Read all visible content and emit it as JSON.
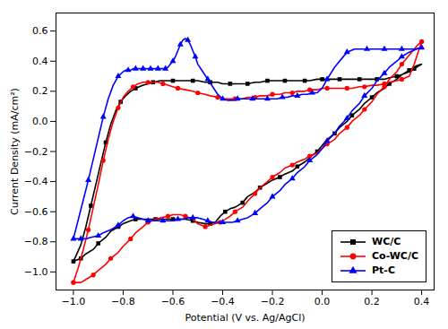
{
  "chart_data": {
    "type": "line",
    "xlabel": "Potential (V vs. Ag/AgCl)",
    "ylabel": "Current Density (mA/cm²)",
    "xlim": [
      -1.07,
      0.45
    ],
    "ylim": [
      -1.12,
      0.72
    ],
    "xticks": [
      {
        "value": -1.0,
        "label": "−1.0"
      },
      {
        "value": -0.8,
        "label": "−0.8"
      },
      {
        "value": -0.6,
        "label": "−0.6"
      },
      {
        "value": -0.4,
        "label": "−0.4"
      },
      {
        "value": -0.2,
        "label": "−0.2"
      },
      {
        "value": 0.0,
        "label": "0.0"
      },
      {
        "value": 0.2,
        "label": "0.2"
      },
      {
        "value": 0.4,
        "label": "0.4"
      }
    ],
    "yticks": [
      {
        "value": -1.0,
        "label": "−1.0"
      },
      {
        "value": -0.8,
        "label": "−0.8"
      },
      {
        "value": -0.6,
        "label": "−0.6"
      },
      {
        "value": -0.4,
        "label": "−0.4"
      },
      {
        "value": -0.2,
        "label": "−0.2"
      },
      {
        "value": 0.0,
        "label": "0.0"
      },
      {
        "value": 0.2,
        "label": "0.2"
      },
      {
        "value": 0.4,
        "label": "0.4"
      },
      {
        "value": 0.6,
        "label": "0.6"
      }
    ],
    "legend": "lower right",
    "series": [
      {
        "name": "WC/C",
        "color": "#000000",
        "marker": "square",
        "line_style": "solid",
        "x": [
          -1.0,
          -0.97,
          -0.95,
          -0.93,
          -0.91,
          -0.89,
          -0.87,
          -0.85,
          -0.83,
          -0.81,
          -0.79,
          -0.77,
          -0.75,
          -0.72,
          -0.7,
          -0.68,
          -0.65,
          -0.62,
          -0.6,
          -0.58,
          -0.55,
          -0.52,
          -0.5,
          -0.47,
          -0.45,
          -0.42,
          -0.4,
          -0.37,
          -0.35,
          -0.32,
          -0.3,
          -0.27,
          -0.25,
          -0.22,
          -0.2,
          -0.17,
          -0.15,
          -0.12,
          -0.1,
          -0.07,
          -0.05,
          -0.02,
          0.0,
          0.02,
          0.05,
          0.07,
          0.1,
          0.12,
          0.15,
          0.17,
          0.2,
          0.22,
          0.25,
          0.27,
          0.3,
          0.32,
          0.35,
          0.37,
          0.4,
          0.38,
          0.35,
          0.32,
          0.3,
          0.27,
          0.25,
          0.22,
          0.2,
          0.17,
          0.15,
          0.12,
          0.1,
          0.07,
          0.05,
          0.02,
          0.0,
          -0.02,
          -0.05,
          -0.07,
          -0.1,
          -0.12,
          -0.15,
          -0.17,
          -0.2,
          -0.22,
          -0.25,
          -0.27,
          -0.3,
          -0.32,
          -0.35,
          -0.37,
          -0.39,
          -0.41,
          -0.43,
          -0.45,
          -0.47,
          -0.5,
          -0.52,
          -0.55,
          -0.57,
          -0.6,
          -0.62,
          -0.65,
          -0.67,
          -0.7,
          -0.72,
          -0.75,
          -0.77,
          -0.8,
          -0.82,
          -0.85,
          -0.87,
          -0.9,
          -0.92,
          -0.95,
          -0.97,
          -1.0
        ],
        "values": [
          -0.93,
          -0.82,
          -0.7,
          -0.56,
          -0.42,
          -0.28,
          -0.14,
          -0.02,
          0.07,
          0.13,
          0.17,
          0.2,
          0.22,
          0.24,
          0.25,
          0.26,
          0.27,
          0.27,
          0.27,
          0.27,
          0.27,
          0.27,
          0.27,
          0.26,
          0.26,
          0.26,
          0.25,
          0.25,
          0.25,
          0.25,
          0.25,
          0.26,
          0.26,
          0.27,
          0.27,
          0.27,
          0.27,
          0.27,
          0.27,
          0.27,
          0.27,
          0.28,
          0.28,
          0.28,
          0.28,
          0.28,
          0.28,
          0.28,
          0.28,
          0.28,
          0.28,
          0.28,
          0.28,
          0.29,
          0.3,
          0.31,
          0.33,
          0.35,
          0.38,
          0.37,
          0.34,
          0.31,
          0.28,
          0.25,
          0.22,
          0.19,
          0.16,
          0.12,
          0.08,
          0.04,
          0.0,
          -0.04,
          -0.08,
          -0.12,
          -0.16,
          -0.2,
          -0.24,
          -0.27,
          -0.3,
          -0.33,
          -0.35,
          -0.37,
          -0.39,
          -0.41,
          -0.44,
          -0.47,
          -0.5,
          -0.54,
          -0.57,
          -0.58,
          -0.6,
          -0.63,
          -0.67,
          -0.68,
          -0.68,
          -0.67,
          -0.66,
          -0.65,
          -0.65,
          -0.65,
          -0.65,
          -0.65,
          -0.65,
          -0.65,
          -0.65,
          -0.65,
          -0.66,
          -0.68,
          -0.7,
          -0.73,
          -0.77,
          -0.81,
          -0.85,
          -0.88,
          -0.91,
          -0.93
        ]
      },
      {
        "name": "Co-WC/C",
        "color": "#ff0000",
        "marker": "circle",
        "line_style": "solid",
        "x": [
          -1.0,
          -0.98,
          -0.96,
          -0.94,
          -0.92,
          -0.9,
          -0.88,
          -0.86,
          -0.84,
          -0.82,
          -0.8,
          -0.78,
          -0.76,
          -0.74,
          -0.72,
          -0.7,
          -0.68,
          -0.66,
          -0.64,
          -0.62,
          -0.6,
          -0.58,
          -0.55,
          -0.52,
          -0.5,
          -0.47,
          -0.45,
          -0.42,
          -0.4,
          -0.37,
          -0.35,
          -0.32,
          -0.3,
          -0.27,
          -0.25,
          -0.22,
          -0.2,
          -0.17,
          -0.15,
          -0.12,
          -0.1,
          -0.07,
          -0.05,
          -0.02,
          0.0,
          0.02,
          0.05,
          0.07,
          0.1,
          0.12,
          0.15,
          0.17,
          0.2,
          0.22,
          0.25,
          0.27,
          0.3,
          0.32,
          0.35,
          0.37,
          0.4,
          0.38,
          0.35,
          0.32,
          0.3,
          0.27,
          0.25,
          0.22,
          0.2,
          0.17,
          0.15,
          0.12,
          0.1,
          0.07,
          0.05,
          0.02,
          0.0,
          -0.02,
          -0.05,
          -0.07,
          -0.1,
          -0.12,
          -0.15,
          -0.17,
          -0.2,
          -0.22,
          -0.25,
          -0.27,
          -0.3,
          -0.32,
          -0.35,
          -0.37,
          -0.39,
          -0.41,
          -0.43,
          -0.45,
          -0.47,
          -0.5,
          -0.52,
          -0.55,
          -0.57,
          -0.6,
          -0.62,
          -0.65,
          -0.67,
          -0.7,
          -0.72,
          -0.75,
          -0.77,
          -0.8,
          -0.82,
          -0.85,
          -0.87,
          -0.9,
          -0.92,
          -0.95,
          -0.97,
          -1.0
        ],
        "values": [
          -1.07,
          -0.97,
          -0.85,
          -0.72,
          -0.57,
          -0.42,
          -0.26,
          -0.12,
          0.0,
          0.09,
          0.16,
          0.2,
          0.23,
          0.25,
          0.26,
          0.26,
          0.26,
          0.26,
          0.25,
          0.24,
          0.23,
          0.22,
          0.21,
          0.2,
          0.19,
          0.18,
          0.17,
          0.16,
          0.15,
          0.15,
          0.15,
          0.15,
          0.16,
          0.16,
          0.17,
          0.17,
          0.18,
          0.18,
          0.19,
          0.19,
          0.2,
          0.2,
          0.21,
          0.21,
          0.22,
          0.22,
          0.22,
          0.22,
          0.22,
          0.22,
          0.23,
          0.23,
          0.24,
          0.24,
          0.25,
          0.26,
          0.27,
          0.28,
          0.3,
          0.38,
          0.53,
          0.5,
          0.44,
          0.38,
          0.33,
          0.28,
          0.23,
          0.18,
          0.13,
          0.08,
          0.04,
          0.0,
          -0.04,
          -0.08,
          -0.12,
          -0.15,
          -0.18,
          -0.21,
          -0.23,
          -0.25,
          -0.27,
          -0.29,
          -0.31,
          -0.34,
          -0.37,
          -0.4,
          -0.44,
          -0.48,
          -0.53,
          -0.57,
          -0.6,
          -0.63,
          -0.65,
          -0.67,
          -0.68,
          -0.69,
          -0.7,
          -0.68,
          -0.65,
          -0.63,
          -0.62,
          -0.62,
          -0.63,
          -0.64,
          -0.65,
          -0.67,
          -0.7,
          -0.74,
          -0.78,
          -0.83,
          -0.87,
          -0.91,
          -0.95,
          -0.99,
          -1.02,
          -1.05,
          -1.07,
          -1.07
        ]
      },
      {
        "name": "Pt-C",
        "color": "#0000ff",
        "marker": "triangle",
        "line_style": "solid",
        "x": [
          -1.0,
          -0.98,
          -0.96,
          -0.94,
          -0.92,
          -0.9,
          -0.88,
          -0.86,
          -0.84,
          -0.82,
          -0.8,
          -0.79,
          -0.78,
          -0.77,
          -0.76,
          -0.75,
          -0.74,
          -0.73,
          -0.72,
          -0.71,
          -0.7,
          -0.69,
          -0.68,
          -0.67,
          -0.66,
          -0.65,
          -0.64,
          -0.63,
          -0.62,
          -0.61,
          -0.6,
          -0.59,
          -0.58,
          -0.57,
          -0.56,
          -0.55,
          -0.54,
          -0.53,
          -0.52,
          -0.51,
          -0.5,
          -0.48,
          -0.46,
          -0.44,
          -0.42,
          -0.4,
          -0.38,
          -0.36,
          -0.34,
          -0.32,
          -0.3,
          -0.28,
          -0.26,
          -0.24,
          -0.22,
          -0.2,
          -0.18,
          -0.16,
          -0.14,
          -0.12,
          -0.1,
          -0.08,
          -0.06,
          -0.04,
          -0.02,
          0.0,
          0.02,
          0.05,
          0.08,
          0.1,
          0.13,
          0.15,
          0.18,
          0.2,
          0.23,
          0.25,
          0.27,
          0.3,
          0.32,
          0.35,
          0.37,
          0.4,
          0.38,
          0.35,
          0.32,
          0.3,
          0.27,
          0.25,
          0.22,
          0.2,
          0.17,
          0.15,
          0.12,
          0.1,
          0.07,
          0.05,
          0.02,
          0.0,
          -0.02,
          -0.05,
          -0.07,
          -0.1,
          -0.12,
          -0.15,
          -0.17,
          -0.2,
          -0.22,
          -0.25,
          -0.27,
          -0.3,
          -0.32,
          -0.34,
          -0.36,
          -0.38,
          -0.4,
          -0.42,
          -0.44,
          -0.46,
          -0.48,
          -0.5,
          -0.52,
          -0.54,
          -0.56,
          -0.58,
          -0.6,
          -0.62,
          -0.64,
          -0.66,
          -0.68,
          -0.7,
          -0.72,
          -0.74,
          -0.76,
          -0.78,
          -0.8,
          -0.82,
          -0.85,
          -0.88,
          -0.9,
          -0.93,
          -0.95,
          -0.97,
          -1.0
        ],
        "values": [
          -0.78,
          -0.65,
          -0.52,
          -0.39,
          -0.25,
          -0.11,
          0.03,
          0.15,
          0.24,
          0.3,
          0.33,
          0.34,
          0.34,
          0.34,
          0.35,
          0.35,
          0.35,
          0.35,
          0.35,
          0.35,
          0.35,
          0.35,
          0.35,
          0.35,
          0.35,
          0.35,
          0.35,
          0.35,
          0.36,
          0.38,
          0.4,
          0.43,
          0.47,
          0.51,
          0.54,
          0.55,
          0.54,
          0.51,
          0.47,
          0.43,
          0.38,
          0.33,
          0.28,
          0.23,
          0.18,
          0.15,
          0.14,
          0.14,
          0.15,
          0.15,
          0.15,
          0.15,
          0.15,
          0.15,
          0.15,
          0.15,
          0.15,
          0.16,
          0.16,
          0.17,
          0.17,
          0.18,
          0.18,
          0.19,
          0.19,
          0.22,
          0.28,
          0.36,
          0.42,
          0.46,
          0.48,
          0.48,
          0.48,
          0.48,
          0.48,
          0.48,
          0.48,
          0.48,
          0.48,
          0.48,
          0.48,
          0.49,
          0.48,
          0.46,
          0.43,
          0.4,
          0.36,
          0.32,
          0.27,
          0.22,
          0.17,
          0.12,
          0.07,
          0.02,
          -0.03,
          -0.08,
          -0.13,
          -0.18,
          -0.22,
          -0.26,
          -0.3,
          -0.34,
          -0.38,
          -0.42,
          -0.46,
          -0.5,
          -0.54,
          -0.58,
          -0.61,
          -0.64,
          -0.65,
          -0.66,
          -0.67,
          -0.67,
          -0.67,
          -0.67,
          -0.67,
          -0.66,
          -0.65,
          -0.64,
          -0.64,
          -0.64,
          -0.65,
          -0.65,
          -0.66,
          -0.66,
          -0.66,
          -0.66,
          -0.66,
          -0.66,
          -0.65,
          -0.64,
          -0.63,
          -0.64,
          -0.66,
          -0.69,
          -0.72,
          -0.74,
          -0.76,
          -0.77,
          -0.78,
          -0.78,
          -0.78
        ]
      }
    ]
  }
}
